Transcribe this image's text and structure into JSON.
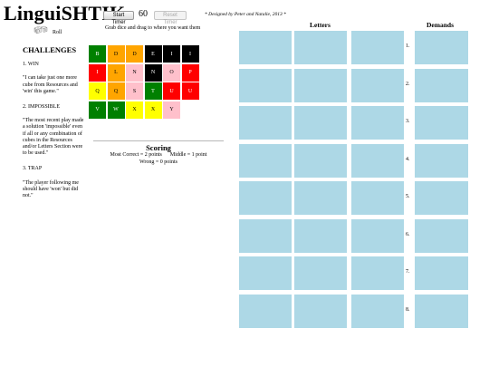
{
  "header": {
    "title": "LinguiSHTIK",
    "start_timer_label": "Start Timer",
    "timer_value": "60",
    "reset_timer_label": "Reset Timer",
    "credit": "* Designed by Peter and Natalie, 2013 *"
  },
  "roll": {
    "label": "Roll",
    "icon": "dice-icon"
  },
  "sidebar": {
    "heading": "CHALLENGES",
    "challenges": [
      {
        "title": "1. WIN",
        "quote": "\"I can take just one more cube from Resources and 'win' this game.\""
      },
      {
        "title": "2. IMPOSSIBLE",
        "quote": "\"The most recent play made a solution 'impossible' even if all or any combination of cubes in the Resources and/or Letters Section were to be used.\""
      },
      {
        "title": "3. TRAP",
        "quote": "\"The player following me should have 'won' but did not.\""
      }
    ]
  },
  "resources": {
    "instruction": "Grab dice and drag to where you want them",
    "dice": [
      {
        "letter": "B",
        "color": "#008000"
      },
      {
        "letter": "D",
        "color": "#ffa500"
      },
      {
        "letter": "D",
        "color": "#ffa500"
      },
      {
        "letter": "E",
        "color": "#000000"
      },
      {
        "letter": "I",
        "color": "#000000"
      },
      {
        "letter": "I",
        "color": "#000000"
      },
      {
        "letter": "I",
        "color": "#ff0000"
      },
      {
        "letter": "L",
        "color": "#ffa500"
      },
      {
        "letter": "N",
        "color": "#ffc0cb"
      },
      {
        "letter": "N",
        "color": "#000000"
      },
      {
        "letter": "O",
        "color": "#ffc0cb"
      },
      {
        "letter": "P",
        "color": "#ff0000"
      },
      {
        "letter": "Q",
        "color": "#ffff00"
      },
      {
        "letter": "Q",
        "color": "#ffa500"
      },
      {
        "letter": "S",
        "color": "#ffc0cb"
      },
      {
        "letter": "T",
        "color": "#008000"
      },
      {
        "letter": "U",
        "color": "#ff0000"
      },
      {
        "letter": "U",
        "color": "#ff0000"
      },
      {
        "letter": "V",
        "color": "#008000"
      },
      {
        "letter": "W",
        "color": "#008000"
      },
      {
        "letter": "X",
        "color": "#ffff00"
      },
      {
        "letter": "X",
        "color": "#ffff00"
      },
      {
        "letter": "Y",
        "color": "#ffc0cb"
      }
    ]
  },
  "scoring": {
    "heading": "Scoring",
    "most_correct": "Most Correct = 2 points",
    "middle": "Middle = 1 point",
    "wrong": "Wrong = 0 points"
  },
  "board": {
    "letters_heading": "Letters",
    "demands_heading": "Demands",
    "rows": [
      "1.",
      "2.",
      "3.",
      "4.",
      "5.",
      "6.",
      "7.",
      "8."
    ]
  },
  "colors": {
    "slot": "#add8e6",
    "dark_letter": "#ffffff",
    "light_letter": "#000000"
  }
}
